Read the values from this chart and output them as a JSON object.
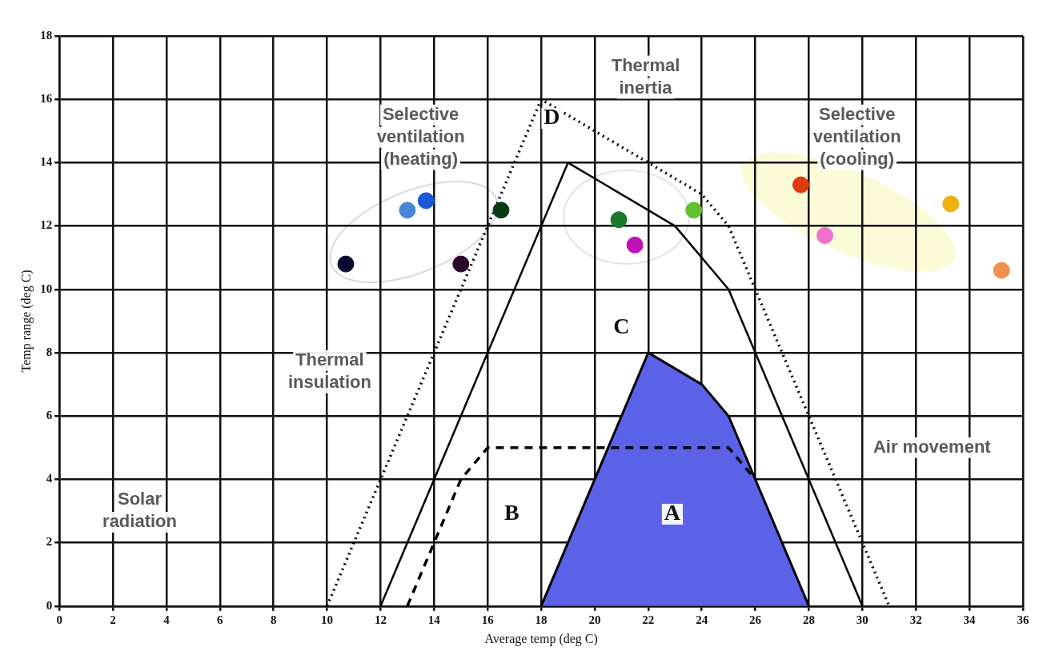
{
  "chart_data": {
    "type": "scatter",
    "xlabel": "Average temp (deg C)",
    "ylabel": "Temp range (deg C)",
    "xlim": [
      0,
      36
    ],
    "xticks": [
      0,
      2,
      4,
      6,
      8,
      10,
      12,
      14,
      16,
      18,
      20,
      22,
      24,
      26,
      28,
      30,
      32,
      34,
      36
    ],
    "ylim": [
      0,
      18
    ],
    "yticks": [
      0,
      2,
      4,
      6,
      8,
      10,
      12,
      14,
      16,
      18
    ],
    "grid": true,
    "legend": false,
    "series": [
      {
        "type": "area",
        "color": "#5b62e8",
        "x": [
          18,
          22,
          24,
          25,
          28
        ],
        "values": [
          0,
          8,
          7,
          6,
          0
        ]
      },
      {
        "type": "line",
        "color": "#000000",
        "line_style": "solid",
        "marker": "none",
        "x": [
          12,
          19,
          23,
          25,
          30
        ],
        "values": [
          0,
          14,
          12,
          10,
          0
        ]
      },
      {
        "type": "line",
        "color": "#000000",
        "line_style": "dotted",
        "marker": "none",
        "x": [
          10,
          18,
          24,
          25,
          31
        ],
        "values": [
          0,
          16,
          13,
          12,
          0
        ]
      },
      {
        "type": "line",
        "color": "#000000",
        "line_style": "dashed",
        "marker": "none",
        "x": [
          13,
          14,
          15,
          16,
          25,
          26
        ],
        "values": [
          0,
          2,
          4,
          5,
          5,
          4
        ]
      },
      {
        "type": "scatter",
        "marker": "circle",
        "x": [
          10.7,
          13.0,
          13.7,
          15.0,
          16.5,
          20.9,
          21.5,
          23.7,
          27.7,
          28.6,
          33.3,
          35.2
        ],
        "values": [
          10.8,
          12.5,
          12.8,
          10.8,
          12.5,
          12.2,
          11.4,
          12.5,
          13.3,
          11.7,
          12.7,
          10.6
        ],
        "colors": [
          "#0a0a30",
          "#4a86d8",
          "#1a5ad8",
          "#2a0a28",
          "#0a3a14",
          "#1a7a2a",
          "#c010b8",
          "#60c030",
          "#e03a10",
          "#f070d0",
          "#f0b010",
          "#f09050"
        ]
      }
    ],
    "annotations": [
      "Thermal\ninertia",
      "Selective\nventilation\n(heating)",
      "Selective\nventilation\n(cooling)",
      "Thermal\ninsulation",
      "Solar\nradiation",
      "Air movement",
      "D",
      "C",
      "B",
      "A"
    ]
  }
}
